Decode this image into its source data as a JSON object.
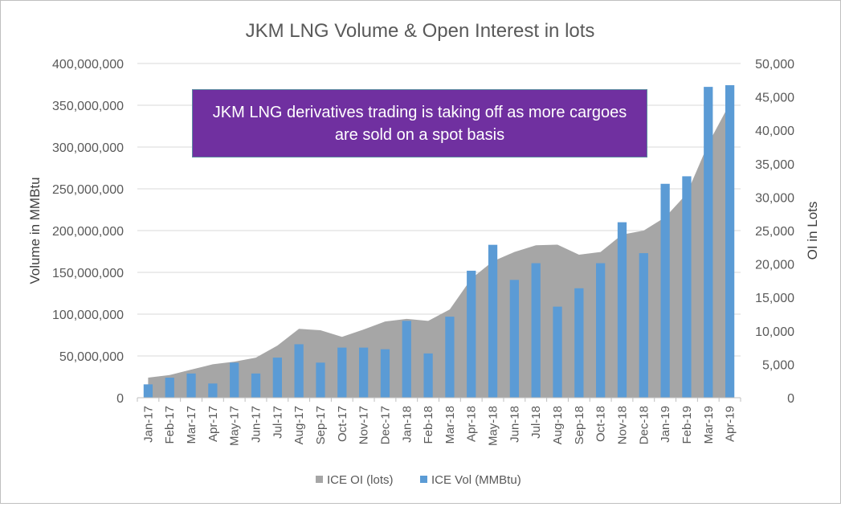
{
  "chart_data": {
    "type": "bar",
    "title": "JKM LNG Volume & Open Interest in lots",
    "categories": [
      "Jan-17",
      "Feb-17",
      "Mar-17",
      "Apr-17",
      "May-17",
      "Jun-17",
      "Jul-17",
      "Aug-17",
      "Sep-17",
      "Oct-17",
      "Nov-17",
      "Dec-17",
      "Jan-18",
      "Feb-18",
      "Mar-18",
      "Apr-18",
      "May-18",
      "Jun-18",
      "Jul-18",
      "Aug-18",
      "Sep-18",
      "Oct-18",
      "Nov-18",
      "Dec-18",
      "Jan-19",
      "Feb-19",
      "Mar-19",
      "Apr-19"
    ],
    "series": [
      {
        "name": "ICE OI (lots)",
        "type": "area",
        "axis": "right",
        "color": "#a6a6a6",
        "values": [
          3000,
          3400,
          4200,
          5000,
          5400,
          6000,
          7800,
          10300,
          10100,
          9100,
          10200,
          11400,
          11800,
          11500,
          13200,
          17800,
          20400,
          21800,
          22800,
          22900,
          21400,
          21800,
          24400,
          25000,
          27000,
          30500,
          38000,
          44000
        ]
      },
      {
        "name": "ICE Vol (MMBtu)",
        "type": "bar",
        "axis": "left",
        "color": "#5b9bd5",
        "values": [
          16000000,
          24000000,
          29000000,
          17000000,
          42000000,
          29000000,
          48000000,
          64000000,
          42000000,
          60000000,
          60000000,
          58000000,
          92000000,
          53000000,
          97000000,
          152000000,
          183000000,
          141000000,
          161000000,
          109000000,
          131000000,
          161000000,
          210000000,
          173000000,
          256000000,
          265000000,
          372000000,
          374000000
        ]
      }
    ],
    "ylabel_left": "Volume in MMBtu",
    "ylabel_right": "OI in Lots",
    "ylim_left": [
      0,
      400000000
    ],
    "yticks_left": [
      "0",
      "50,000,000",
      "100,000,000",
      "150,000,000",
      "200,000,000",
      "250,000,000",
      "300,000,000",
      "350,000,000",
      "400,000,000"
    ],
    "ylim_right": [
      0,
      50000
    ],
    "yticks_right": [
      "0",
      "5,000",
      "10,000",
      "15,000",
      "20,000",
      "25,000",
      "30,000",
      "35,000",
      "40,000",
      "45,000",
      "50,000"
    ],
    "grid": "horizontal",
    "legend_position": "bottom",
    "annotation": "JKM LNG derivatives trading is taking off as more cargoes are sold on a spot basis",
    "colors": {
      "gridline": "#d9d9d9",
      "axis_text": "#595959",
      "callout_bg": "#7030a0"
    }
  }
}
